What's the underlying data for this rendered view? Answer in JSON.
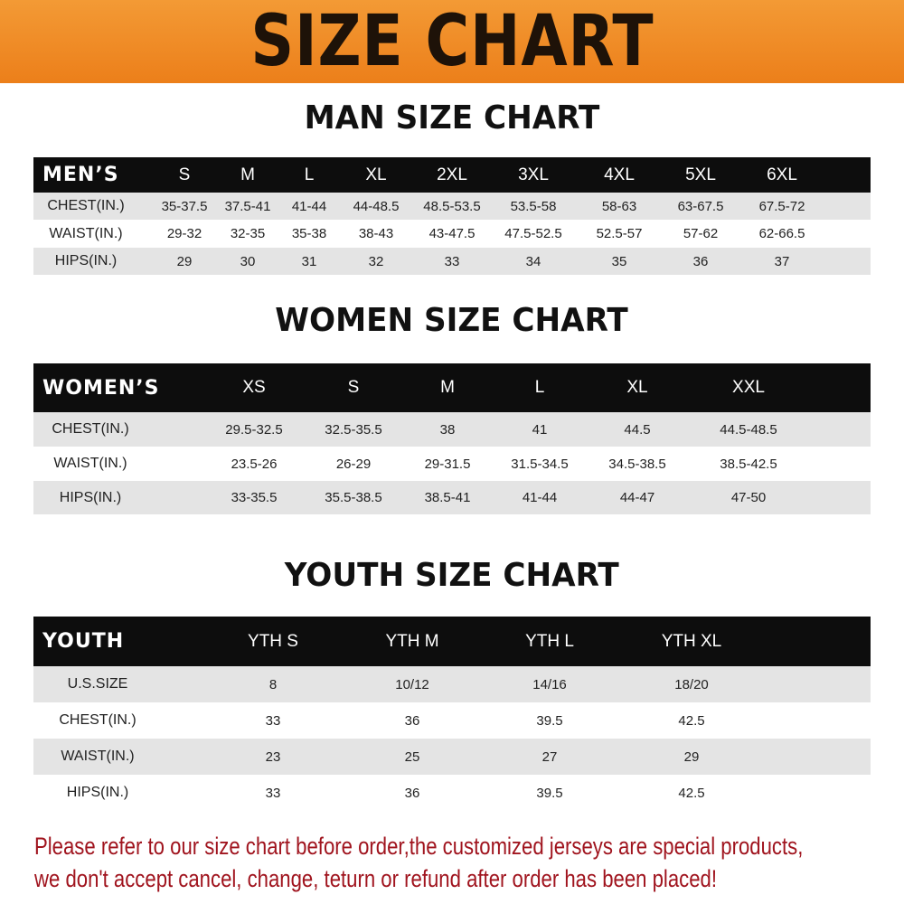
{
  "banner": {
    "title": "SIZE CHART",
    "color": "#ee8a25"
  },
  "men": {
    "title": "MAN SIZE CHART",
    "header": [
      "MEN’S",
      "S",
      "M",
      "L",
      "XL",
      "2XL",
      "3XL",
      "4XL",
      "5XL",
      "6XL"
    ],
    "rows": [
      [
        "CHEST(IN.)",
        "35-37.5",
        "37.5-41",
        "41-44",
        "44-48.5",
        "48.5-53.5",
        "53.5-58",
        "58-63",
        "63-67.5",
        "67.5-72"
      ],
      [
        "WAIST(IN.)",
        "29-32",
        "32-35",
        "35-38",
        "38-43",
        "43-47.5",
        "47.5-52.5",
        "52.5-57",
        "57-62",
        "62-66.5"
      ],
      [
        "HIPS(IN.)",
        "29",
        "30",
        "31",
        "32",
        "33",
        "34",
        "35",
        "36",
        "37"
      ]
    ]
  },
  "women": {
    "title": "WOMEN SIZE CHART",
    "header": [
      "WOMEN’S",
      "XS",
      "S",
      "M",
      "L",
      "XL",
      "XXL"
    ],
    "rows": [
      [
        "CHEST(IN.)",
        "29.5-32.5",
        "32.5-35.5",
        "38",
        "41",
        "44.5",
        "44.5-48.5"
      ],
      [
        "WAIST(IN.)",
        "23.5-26",
        "26-29",
        "29-31.5",
        "31.5-34.5",
        "34.5-38.5",
        "38.5-42.5"
      ],
      [
        "HIPS(IN.)",
        "33-35.5",
        "35.5-38.5",
        "38.5-41",
        "41-44",
        "44-47",
        "47-50"
      ]
    ]
  },
  "youth": {
    "title": "YOUTH SIZE CHART",
    "header": [
      "YOUTH",
      "YTH S",
      "YTH M",
      "YTH L",
      "YTH XL"
    ],
    "rows": [
      [
        "U.S.SIZE",
        "8",
        "10/12",
        "14/16",
        "18/20"
      ],
      [
        "CHEST(IN.)",
        "33",
        "36",
        "39.5",
        "42.5"
      ],
      [
        "WAIST(IN.)",
        "23",
        "25",
        "27",
        "29"
      ],
      [
        "HIPS(IN.)",
        "33",
        "36",
        "39.5",
        "42.5"
      ]
    ]
  },
  "note": {
    "line1": "Please refer to our size chart before order,the customized jerseys are special products,",
    "line2": "we don't accept cancel, change, teturn or refund after order has been placed!",
    "color": "#a0141e"
  }
}
